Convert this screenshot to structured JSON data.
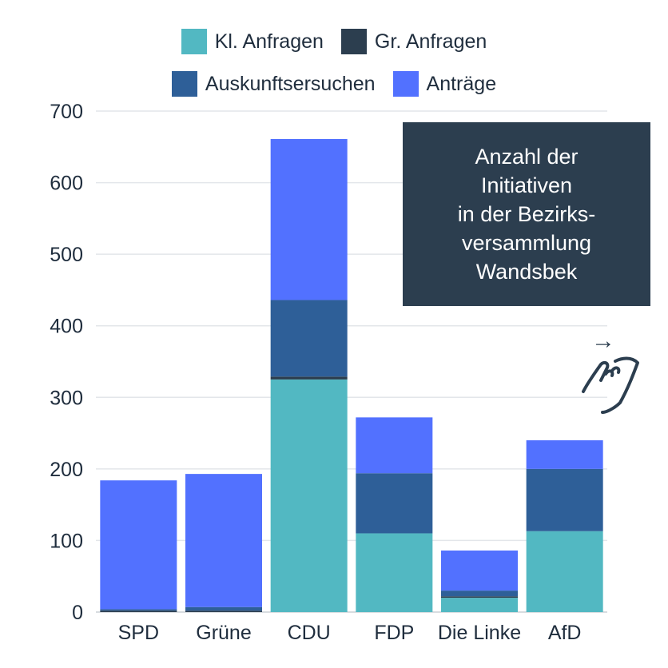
{
  "chart_data": {
    "type": "bar",
    "stacked": true,
    "categories": [
      "SPD",
      "Grüne",
      "CDU",
      "FDP",
      "Die Linke",
      "AfD"
    ],
    "series": [
      {
        "name": "Kl. Anfragen",
        "color": "#52b8c2",
        "values": [
          0,
          0,
          325,
          110,
          20,
          113
        ]
      },
      {
        "name": "Gr. Anfragen",
        "color": "#2c3e4f",
        "values": [
          2,
          2,
          4,
          0,
          2,
          0
        ]
      },
      {
        "name": "Auskunftsersuchen",
        "color": "#2e5f98",
        "values": [
          2,
          5,
          107,
          84,
          8,
          87
        ]
      },
      {
        "name": "Anträge",
        "color": "#5271ff",
        "values": [
          180,
          186,
          225,
          78,
          56,
          40
        ]
      }
    ],
    "ylim": [
      0,
      700
    ],
    "yticks": [
      "0",
      "100",
      "200",
      "300",
      "400",
      "500",
      "600",
      "700"
    ],
    "grid": true,
    "legend_position": "top",
    "annotation": "Anzahl der\nInitiativen\nin der Bezirks-\nversammlung\nWandsbek"
  },
  "hint": {
    "icon": "swipe-hand-icon",
    "arrow": "→"
  }
}
